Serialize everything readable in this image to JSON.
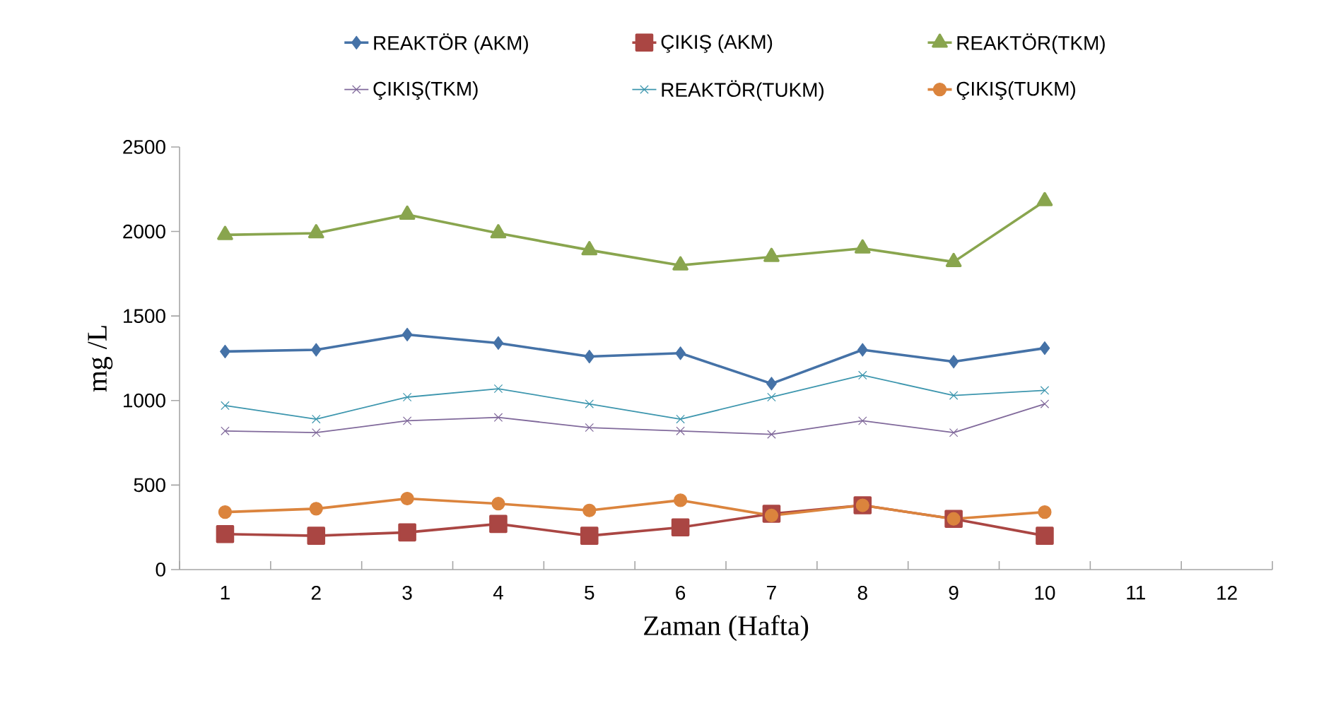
{
  "chart_data": {
    "type": "line",
    "xlabel": "Zaman (Hafta)",
    "ylabel": "mg /L",
    "categories": [
      "1",
      "2",
      "3",
      "4",
      "5",
      "6",
      "7",
      "8",
      "9",
      "10",
      "11",
      "12"
    ],
    "ylim": [
      0,
      2500
    ],
    "yticks": [
      0,
      500,
      1000,
      1500,
      2000,
      2500
    ],
    "grid": false,
    "legend": "top",
    "series": [
      {
        "name": "REAKTÖR (AKM)",
        "color": "#4572a7",
        "marker": "diamond",
        "values": [
          1290,
          1300,
          1390,
          1340,
          1260,
          1280,
          1100,
          1300,
          1230,
          1310,
          null,
          null
        ]
      },
      {
        "name": "ÇIKIŞ (AKM)",
        "color": "#aa4643",
        "marker": "square",
        "values": [
          210,
          200,
          220,
          270,
          200,
          250,
          330,
          380,
          300,
          200,
          null,
          null
        ]
      },
      {
        "name": "REAKTÖR(TKM)",
        "color": "#89a54e",
        "marker": "triangle",
        "values": [
          1980,
          1990,
          2100,
          1990,
          1890,
          1800,
          1850,
          1900,
          1820,
          2180,
          null,
          null
        ]
      },
      {
        "name": "ÇIKIŞ(TKM)",
        "color": "#80699b",
        "marker": "cross",
        "values": [
          820,
          810,
          880,
          900,
          840,
          820,
          800,
          880,
          810,
          980,
          null,
          null
        ]
      },
      {
        "name": "REAKTÖR(TUKM)",
        "color": "#3d96ae",
        "marker": "cross",
        "values": [
          970,
          890,
          1020,
          1070,
          980,
          890,
          1020,
          1150,
          1030,
          1060,
          null,
          null
        ]
      },
      {
        "name": "ÇIKIŞ(TUKM)",
        "color": "#db843d",
        "marker": "circle",
        "values": [
          340,
          360,
          420,
          390,
          350,
          410,
          320,
          380,
          300,
          340,
          null,
          null
        ]
      }
    ]
  }
}
